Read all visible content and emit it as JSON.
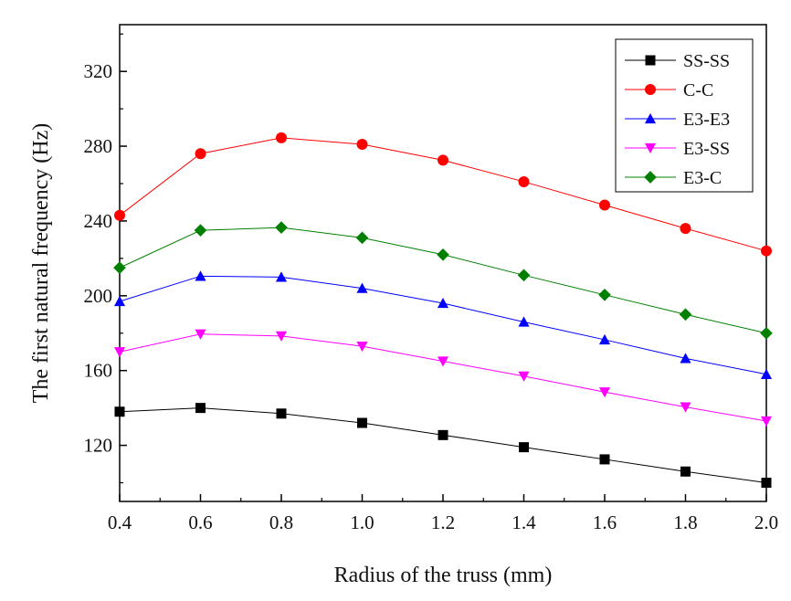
{
  "chart_data": {
    "type": "line",
    "title": "",
    "xlabel": "Radius of the truss (mm)",
    "ylabel": "The first natural frequency (Hz)",
    "xlim": [
      0.4,
      2.0
    ],
    "ylim": [
      90,
      345
    ],
    "x_ticks": [
      "0.4",
      "0.6",
      "0.8",
      "1.0",
      "1.2",
      "1.4",
      "1.6",
      "1.8",
      "2.0"
    ],
    "y_ticks": [
      "120",
      "160",
      "200",
      "240",
      "280",
      "320"
    ],
    "grid": false,
    "legend_position": "top-right",
    "x": [
      0.4,
      0.6,
      0.8,
      1.0,
      1.2,
      1.4,
      1.6,
      1.8,
      2.0
    ],
    "series": [
      {
        "name": "SS-SS",
        "color": "#000000",
        "marker": "square",
        "values": [
          138,
          140,
          137,
          132,
          125.5,
          119,
          112.5,
          106,
          100
        ]
      },
      {
        "name": "C-C",
        "color": "#ff0000",
        "marker": "circle",
        "values": [
          243,
          276,
          284.5,
          281,
          272.5,
          261,
          248.5,
          236,
          224
        ]
      },
      {
        "name": "E3-E3",
        "color": "#0000ff",
        "marker": "triangle-up",
        "values": [
          197,
          210.5,
          210,
          204,
          196,
          186,
          176.5,
          166.5,
          158
        ]
      },
      {
        "name": "E3-SS",
        "color": "#ff00ff",
        "marker": "triangle-down",
        "values": [
          170,
          179.5,
          178.5,
          173,
          165,
          157,
          148.5,
          140.5,
          133
        ]
      },
      {
        "name": "E3-C",
        "color": "#008000",
        "marker": "diamond",
        "values": [
          215,
          235,
          236.5,
          231,
          222,
          211,
          200.5,
          190,
          180
        ]
      }
    ]
  }
}
